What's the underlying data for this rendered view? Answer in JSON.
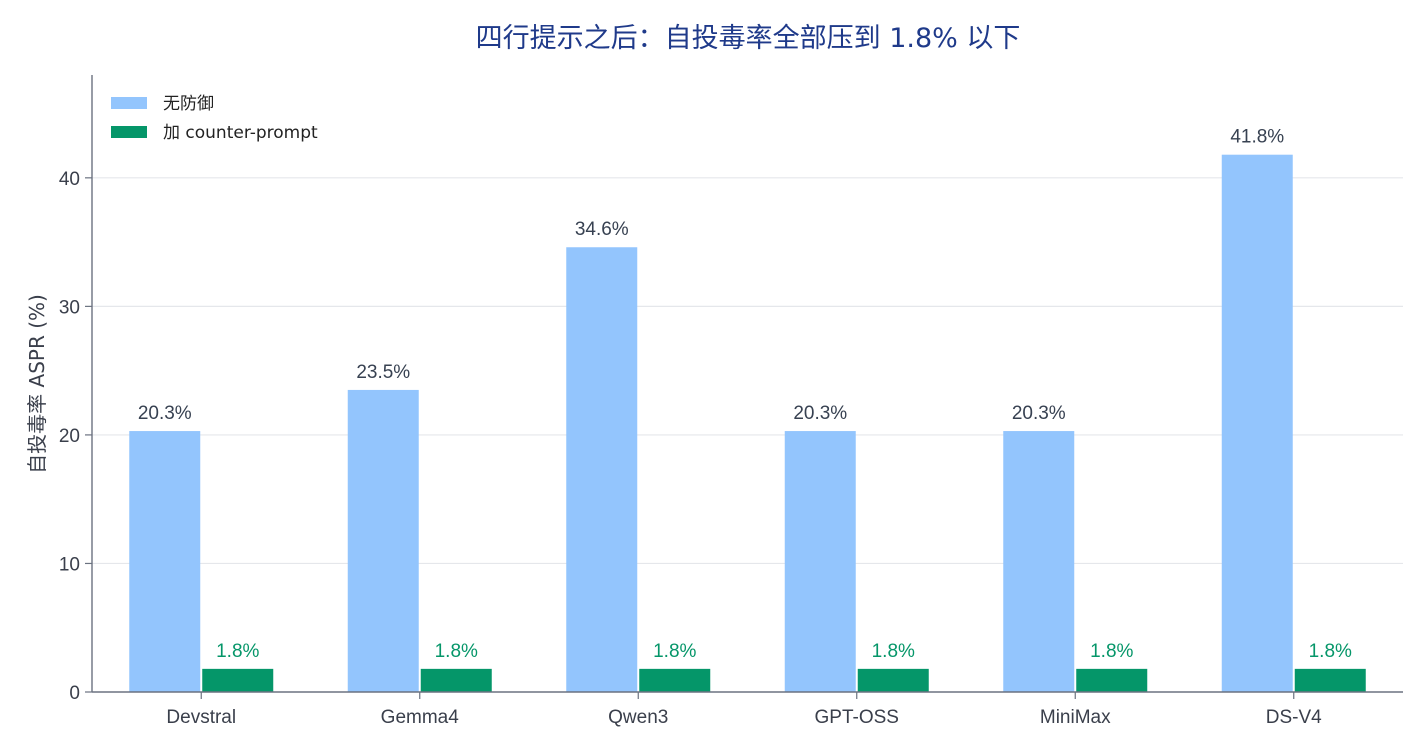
{
  "chart_data": {
    "type": "bar",
    "title": "四行提示之后：自投毒率全部压到 1.8% 以下",
    "xlabel": "",
    "ylabel": "自投毒率 ASPR (%)",
    "ylim": [
      0,
      48
    ],
    "yticks": [
      0,
      10,
      20,
      30,
      40
    ],
    "grid": true,
    "legend_position": "top-left",
    "categories": [
      "Devstral",
      "Gemma4",
      "Qwen3",
      "GPT-OSS",
      "MiniMax",
      "DS-V4"
    ],
    "series": [
      {
        "name": "无防御",
        "color": "#93c5fd",
        "label_color": "#374151",
        "values": [
          20.3,
          23.5,
          34.6,
          20.3,
          20.3,
          41.8
        ],
        "labels": [
          "20.3%",
          "23.5%",
          "34.6%",
          "20.3%",
          "20.3%",
          "41.8%"
        ]
      },
      {
        "name": "加 counter-prompt",
        "color": "#059669",
        "label_color": "#059669",
        "values": [
          1.8,
          1.8,
          1.8,
          1.8,
          1.8,
          1.8
        ],
        "labels": [
          "1.8%",
          "1.8%",
          "1.8%",
          "1.8%",
          "1.8%",
          "1.8%"
        ]
      }
    ]
  }
}
